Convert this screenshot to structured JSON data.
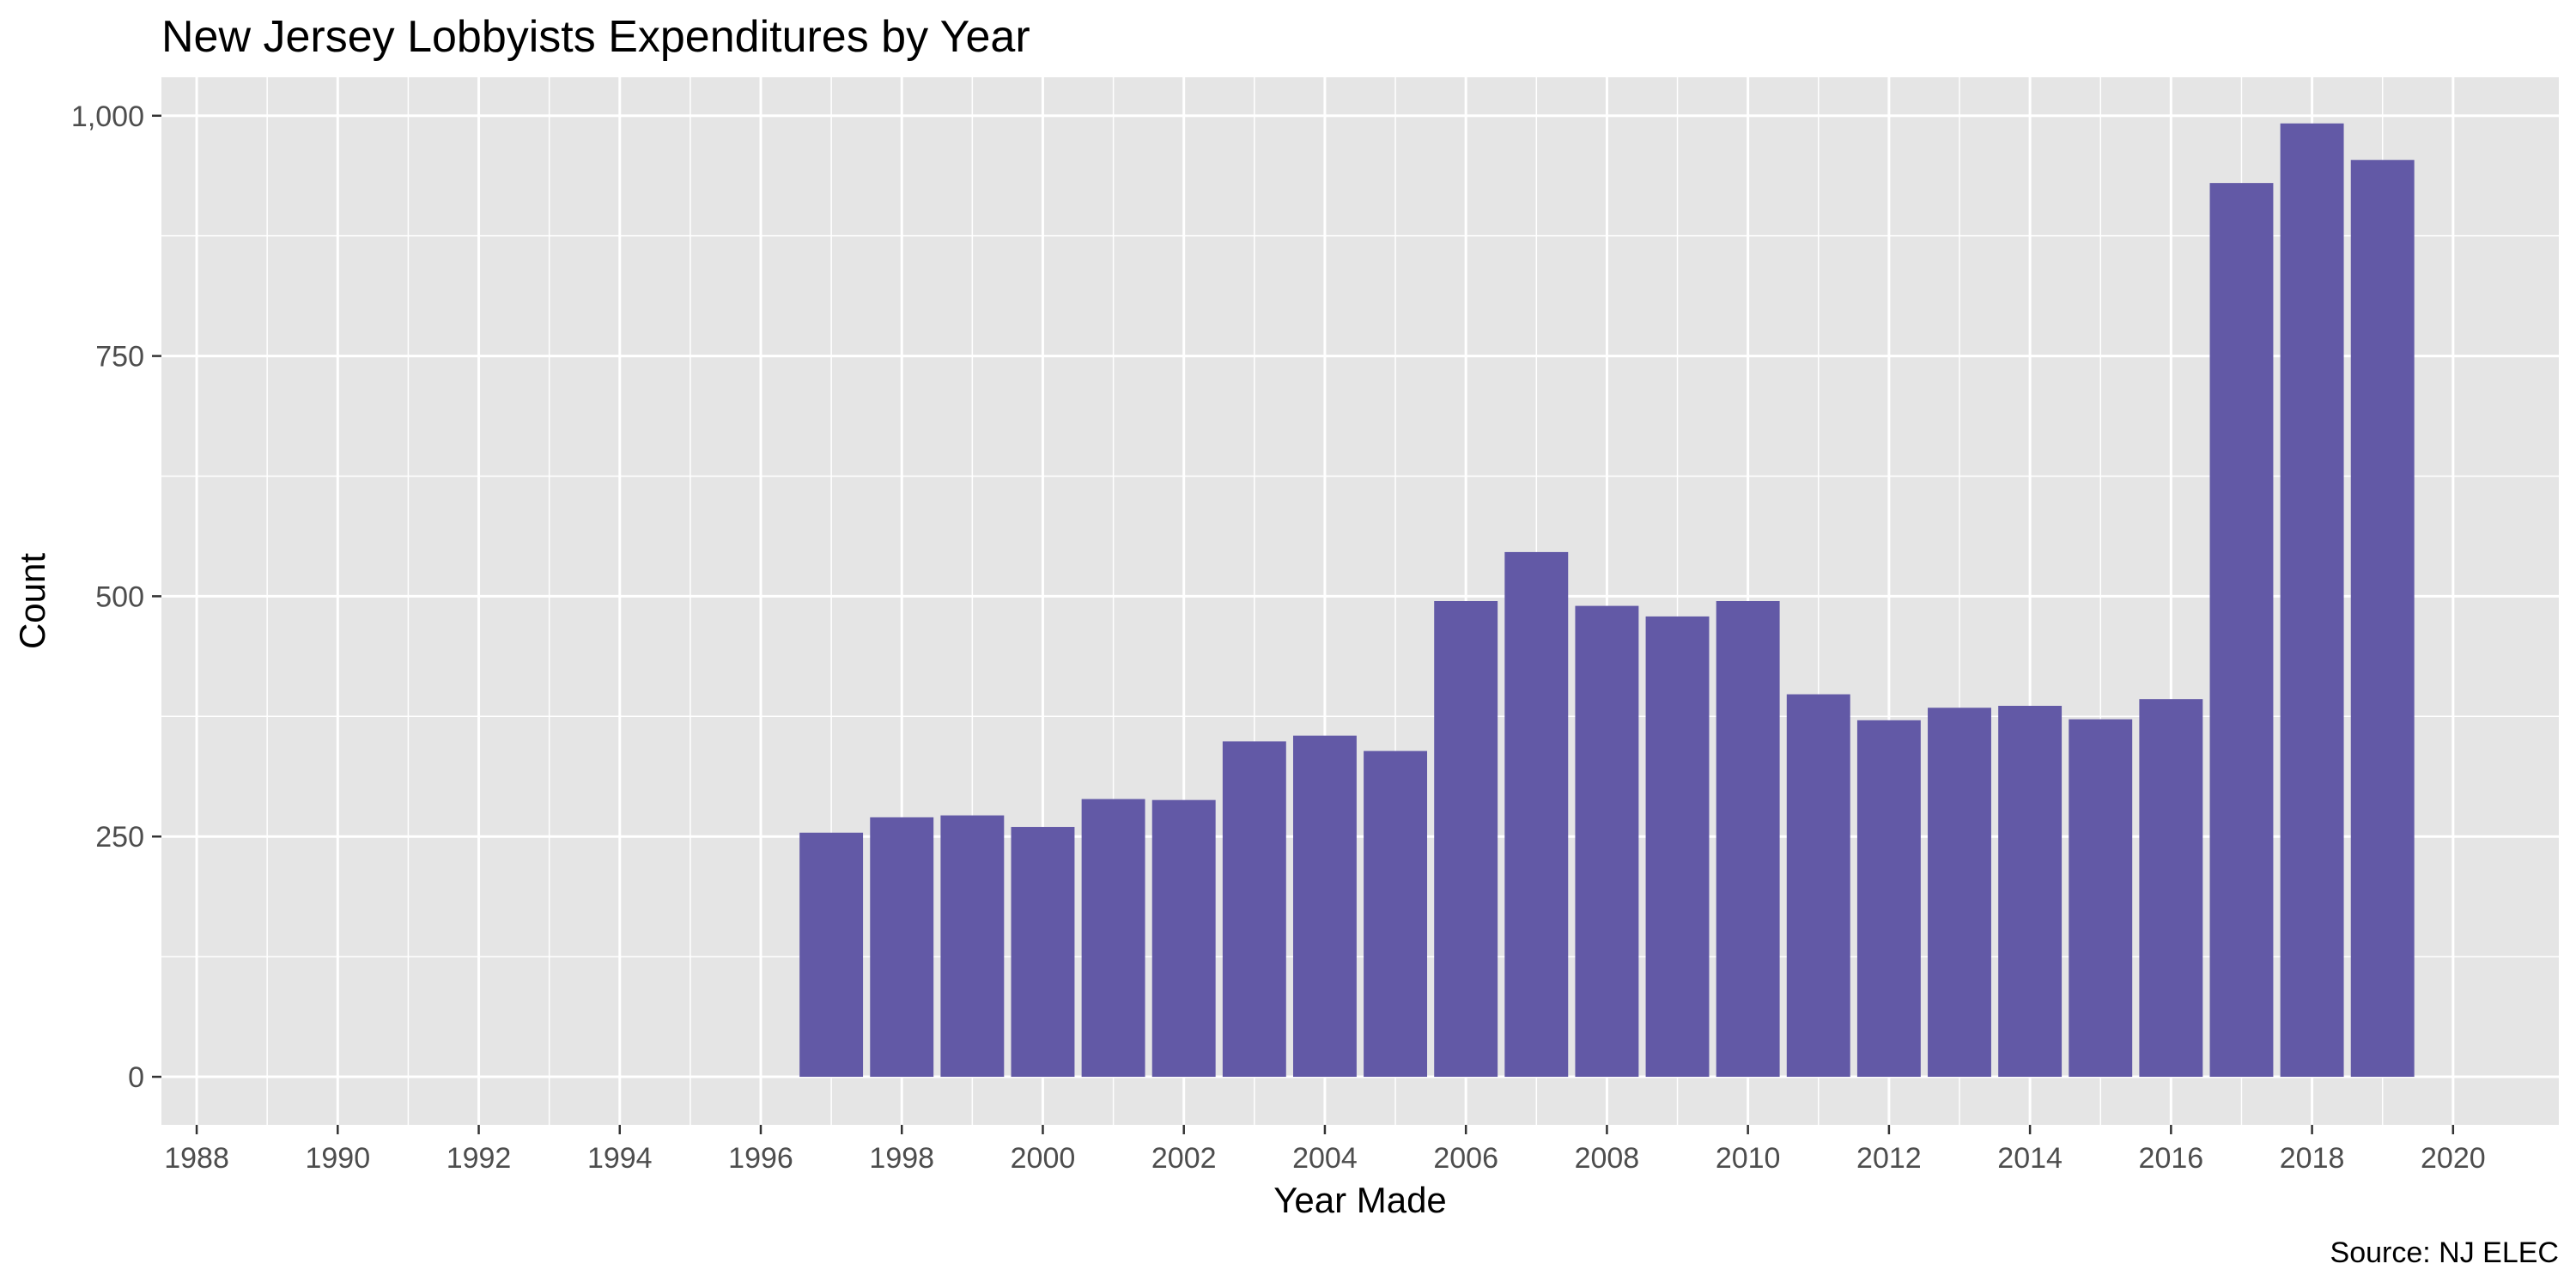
{
  "chart_data": {
    "type": "bar",
    "title": "New Jersey Lobbyists Expenditures by Year",
    "xlabel": "Year Made",
    "ylabel": "Count",
    "caption": "Source: NJ ELEC",
    "x": [
      1997,
      1998,
      1999,
      2000,
      2001,
      2002,
      2003,
      2004,
      2005,
      2006,
      2007,
      2008,
      2009,
      2010,
      2011,
      2012,
      2013,
      2014,
      2015,
      2016,
      2017,
      2018,
      2019
    ],
    "values": [
      254,
      270,
      272,
      260,
      289,
      288,
      349,
      355,
      339,
      495,
      546,
      490,
      479,
      495,
      398,
      371,
      384,
      386,
      372,
      393,
      930,
      992,
      954
    ],
    "xlim": [
      1987.5,
      2021.5
    ],
    "ylim": [
      -50,
      1040
    ],
    "x_ticks": [
      1988,
      1990,
      1992,
      1994,
      1996,
      1998,
      2000,
      2002,
      2004,
      2006,
      2008,
      2010,
      2012,
      2014,
      2016,
      2018,
      2020
    ],
    "x_tick_labels": [
      "1988",
      "1990",
      "1992",
      "1994",
      "1996",
      "1998",
      "2000",
      "2002",
      "2004",
      "2006",
      "2008",
      "2010",
      "2012",
      "2014",
      "2016",
      "2018",
      "2020"
    ],
    "y_ticks": [
      0,
      250,
      500,
      750,
      1000
    ],
    "y_tick_labels": [
      "0",
      "250",
      "500",
      "750",
      "1,000"
    ],
    "grid": true,
    "colors": {
      "bar": "#6259a6",
      "panel": "#e5e5e5",
      "grid": "#ffffff"
    }
  }
}
